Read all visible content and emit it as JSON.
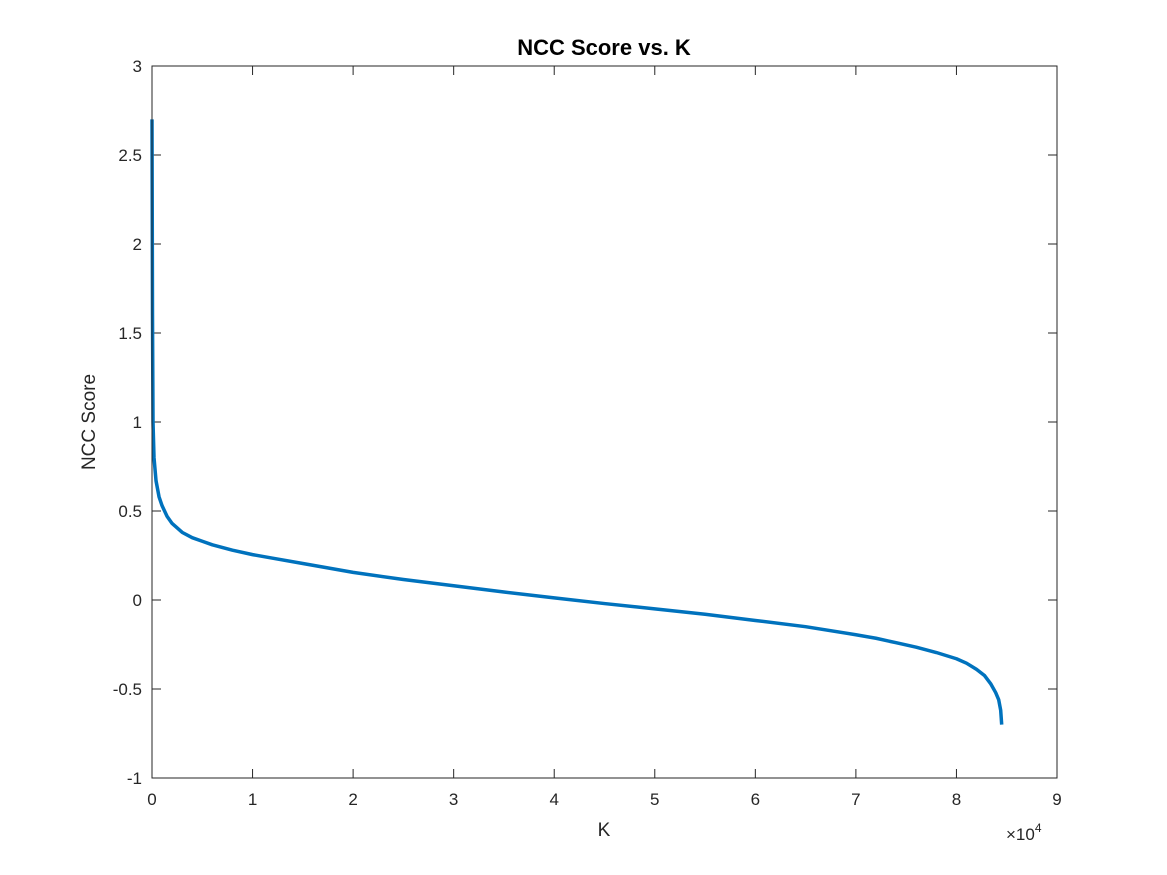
{
  "chart_data": {
    "type": "line",
    "title": "NCC Score vs. K",
    "xlabel": "K",
    "ylabel": "NCC Score",
    "xlim": [
      0,
      90000
    ],
    "ylim": [
      -1,
      3
    ],
    "x_ticks": [
      0,
      10000,
      20000,
      30000,
      40000,
      50000,
      60000,
      70000,
      80000,
      90000
    ],
    "x_tick_labels": [
      "0",
      "1",
      "2",
      "3",
      "4",
      "5",
      "6",
      "7",
      "8",
      "9"
    ],
    "x_exponent_base": "×10",
    "x_exponent_power": "4",
    "y_ticks": [
      -1,
      -0.5,
      0,
      0.5,
      1,
      1.5,
      2,
      2.5,
      3
    ],
    "y_tick_labels": [
      "-1",
      "-0.5",
      "0",
      "0.5",
      "1",
      "1.5",
      "2",
      "2.5",
      "3"
    ],
    "grid": false,
    "box": true,
    "line_color": "#0072BD",
    "series": [
      {
        "x": [
          1,
          50,
          100,
          200,
          400,
          700,
          1000,
          1500,
          2000,
          3000,
          4000,
          5000,
          6000,
          8000,
          10000,
          12000,
          15000,
          20000,
          25000,
          30000,
          35000,
          40000,
          45000,
          50000,
          55000,
          60000,
          65000,
          70000,
          72000,
          74000,
          76000,
          78000,
          80000,
          81000,
          82000,
          82800,
          83400,
          83900,
          84200,
          84400,
          84500
        ],
        "y": [
          2.7,
          1.6,
          1.0,
          0.8,
          0.67,
          0.58,
          0.53,
          0.47,
          0.43,
          0.38,
          0.35,
          0.33,
          0.31,
          0.28,
          0.255,
          0.235,
          0.205,
          0.155,
          0.115,
          0.08,
          0.045,
          0.012,
          -0.02,
          -0.05,
          -0.08,
          -0.115,
          -0.15,
          -0.195,
          -0.215,
          -0.24,
          -0.265,
          -0.295,
          -0.33,
          -0.355,
          -0.39,
          -0.425,
          -0.47,
          -0.52,
          -0.56,
          -0.62,
          -0.7
        ]
      }
    ]
  }
}
